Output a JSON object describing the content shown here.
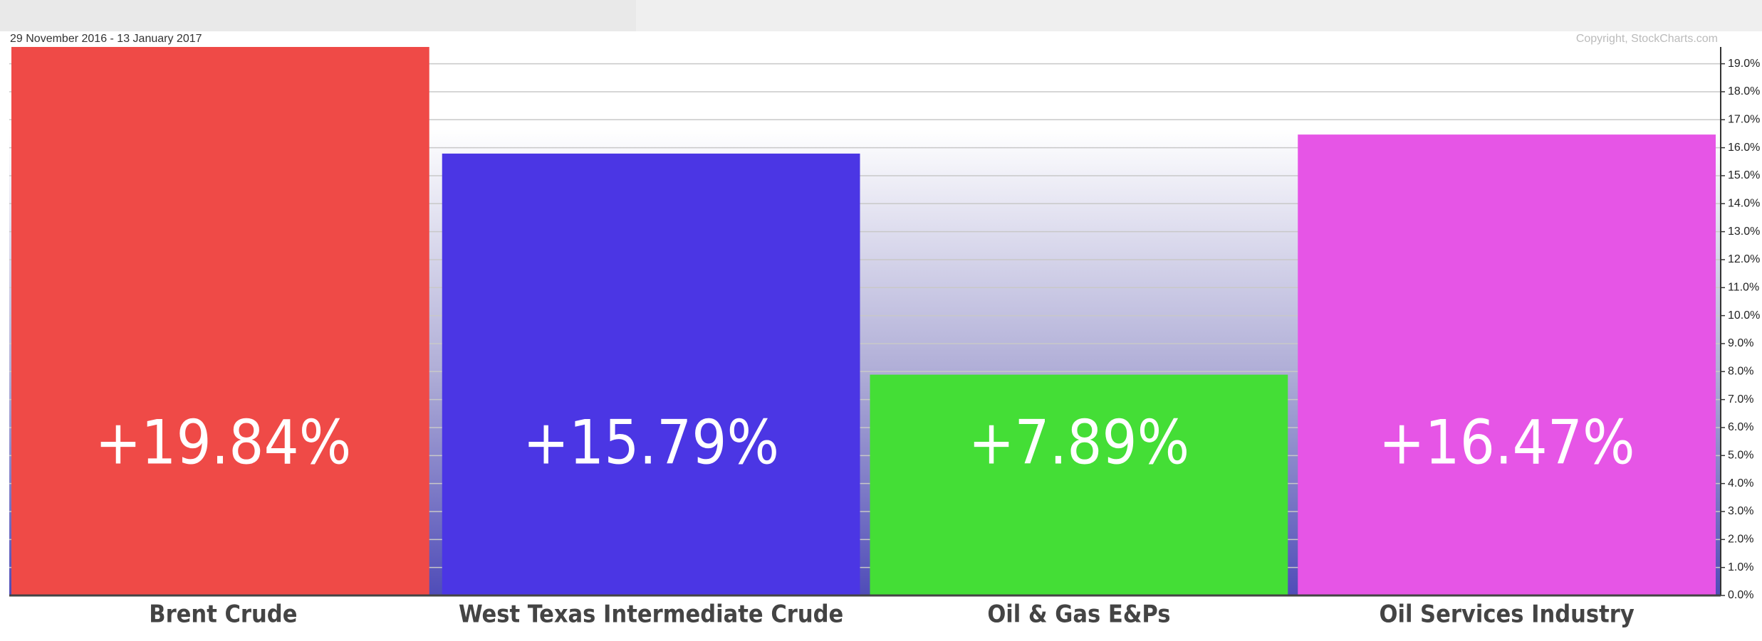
{
  "chart_data": {
    "type": "bar",
    "subtitle": "29 November 2016 - 13 January 2017",
    "source": "Copyright, StockCharts.com",
    "categories": [
      "Brent Crude",
      "West Texas Intermediate Crude",
      "Oil & Gas E&Ps",
      "Oil Services Industry"
    ],
    "values": [
      19.84,
      15.79,
      7.89,
      16.47
    ],
    "value_labels": [
      "+19.84%",
      "+15.79%",
      "+7.89%",
      "+16.47%"
    ],
    "colors": [
      "#ef4a47",
      "#4b36e4",
      "#44de36",
      "#e655e6"
    ],
    "ylim": [
      0,
      19.6
    ],
    "yticks": [
      {
        "value": 0,
        "label": "0.0%"
      },
      {
        "value": 1,
        "label": "1.0%"
      },
      {
        "value": 2,
        "label": "2.0%"
      },
      {
        "value": 3,
        "label": "3.0%"
      },
      {
        "value": 4,
        "label": "4.0%"
      },
      {
        "value": 5,
        "label": "5.0%"
      },
      {
        "value": 6,
        "label": "6.0%"
      },
      {
        "value": 7,
        "label": "7.0%"
      },
      {
        "value": 8,
        "label": "8.0%"
      },
      {
        "value": 9,
        "label": "9.0%"
      },
      {
        "value": 10,
        "label": "10.0%"
      },
      {
        "value": 11,
        "label": "11.0%"
      },
      {
        "value": 12,
        "label": "12.0%"
      },
      {
        "value": 13,
        "label": "13.0%"
      },
      {
        "value": 14,
        "label": "14.0%"
      },
      {
        "value": 15,
        "label": "15.0%"
      },
      {
        "value": 16,
        "label": "16.0%"
      },
      {
        "value": 17,
        "label": "17.0%"
      },
      {
        "value": 18,
        "label": "18.0%"
      },
      {
        "value": 19,
        "label": "19.0%"
      }
    ],
    "grid": true
  }
}
